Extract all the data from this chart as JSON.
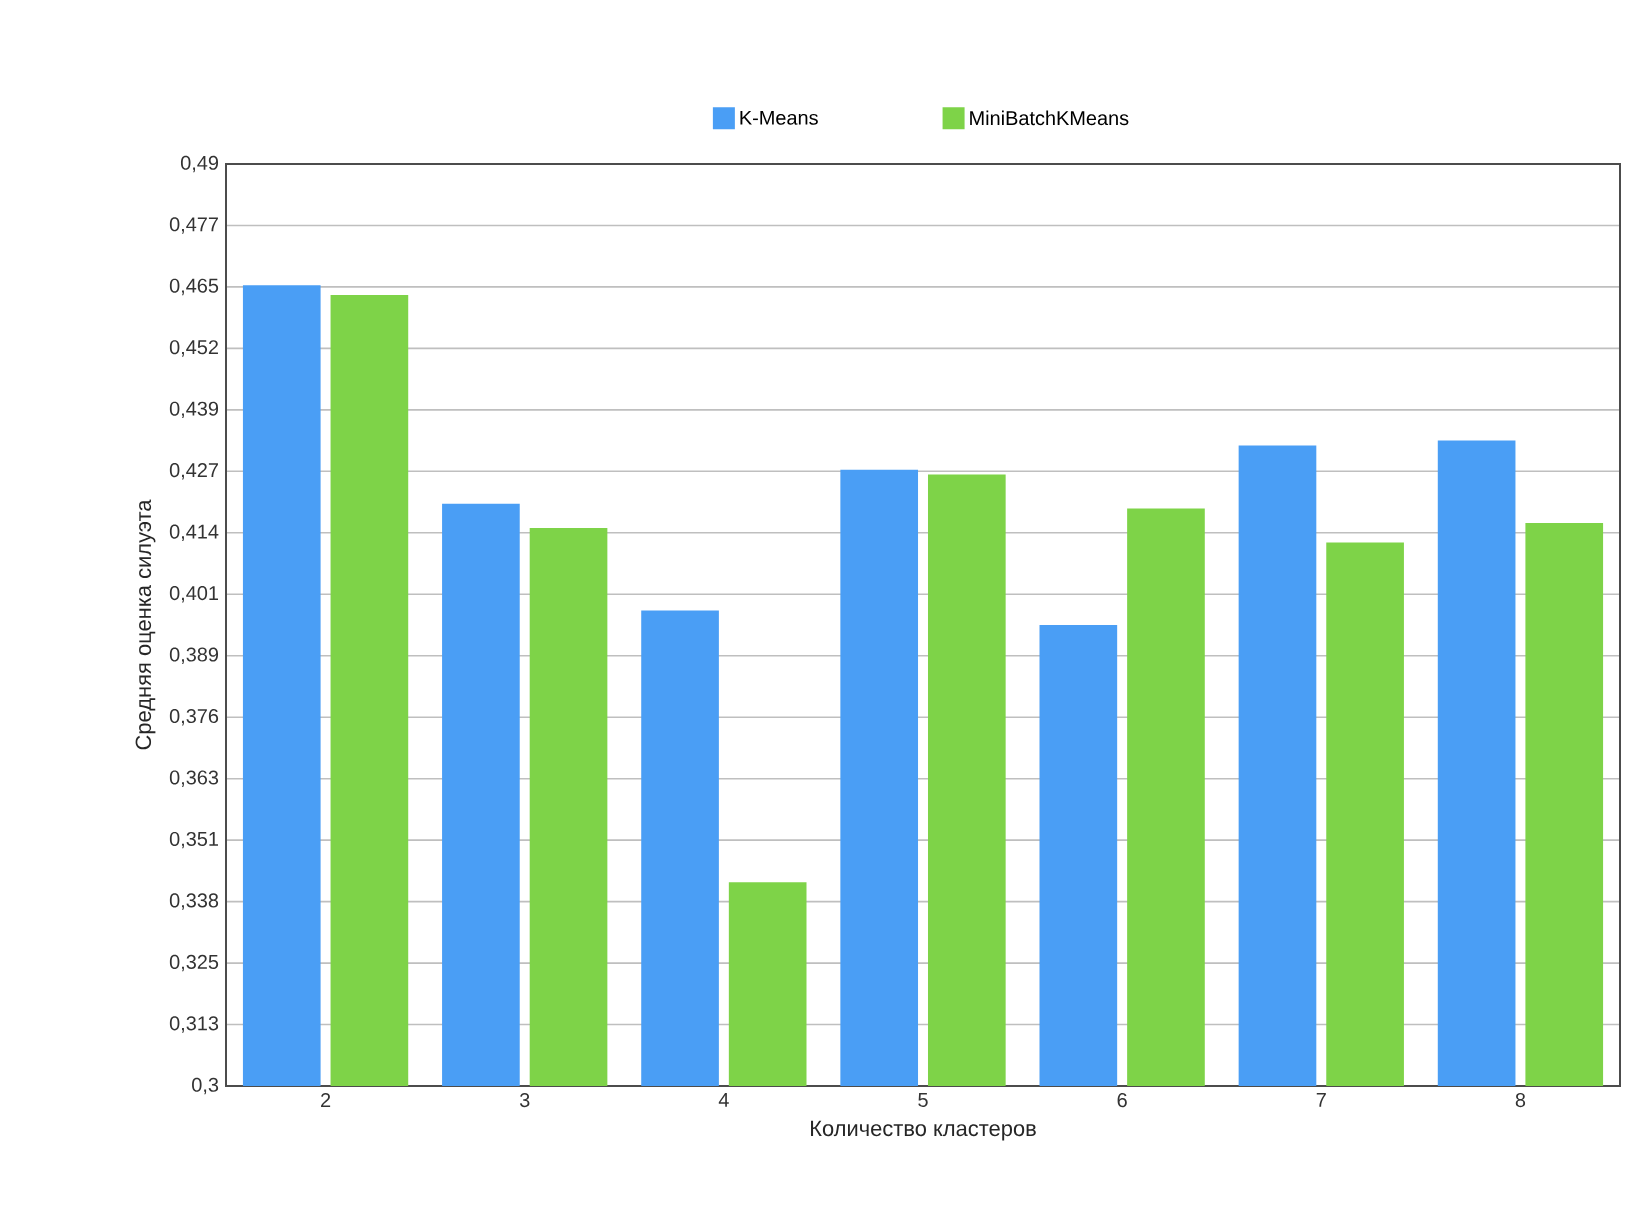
{
  "chart_data": {
    "type": "bar",
    "xlabel": "Количество кластеров",
    "ylabel": "Средняя оценка силуэта",
    "categories": [
      "2",
      "3",
      "4",
      "5",
      "6",
      "7",
      "8"
    ],
    "series": [
      {
        "name": "K-Means",
        "color": "#4a9ef5",
        "values": [
          0.465,
          0.42,
          0.398,
          0.427,
          0.395,
          0.432,
          0.433
        ]
      },
      {
        "name": "MiniBatchKMeans",
        "color": "#7ed348",
        "values": [
          0.463,
          0.415,
          0.342,
          0.426,
          0.419,
          0.412,
          0.416
        ]
      }
    ],
    "ylim": [
      0.3,
      0.49
    ],
    "yticks": [
      {
        "value": 0.3,
        "label": "0,3"
      },
      {
        "value": 0.31267,
        "label": "0,313"
      },
      {
        "value": 0.32533,
        "label": "0,325"
      },
      {
        "value": 0.338,
        "label": "0,338"
      },
      {
        "value": 0.35067,
        "label": "0,351"
      },
      {
        "value": 0.36333,
        "label": "0,363"
      },
      {
        "value": 0.376,
        "label": "0,376"
      },
      {
        "value": 0.38867,
        "label": "0,389"
      },
      {
        "value": 0.40133,
        "label": "0,401"
      },
      {
        "value": 0.414,
        "label": "0,414"
      },
      {
        "value": 0.42667,
        "label": "0,427"
      },
      {
        "value": 0.43933,
        "label": "0,439"
      },
      {
        "value": 0.452,
        "label": "0,452"
      },
      {
        "value": 0.46467,
        "label": "0,465"
      },
      {
        "value": 0.47733,
        "label": "0,477"
      },
      {
        "value": 0.49,
        "label": "0,49"
      }
    ],
    "grid": "y",
    "legend": "top"
  }
}
